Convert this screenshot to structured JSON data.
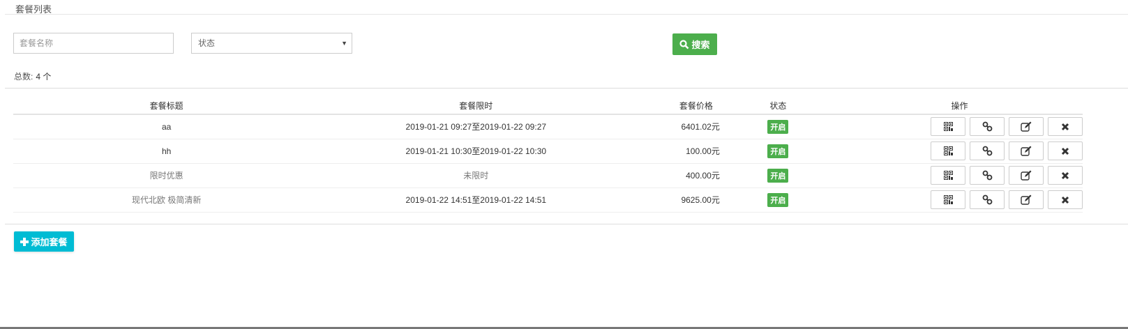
{
  "page_title": "套餐列表",
  "filters": {
    "name_placeholder": "套餐名称",
    "status_value": "状态",
    "search_label": "搜索"
  },
  "count": {
    "label": "总数:",
    "value": "4 个"
  },
  "table": {
    "headers": [
      "套餐标题",
      "套餐限时",
      "套餐价格",
      "状态",
      "操作"
    ],
    "rows": [
      {
        "title": "aa",
        "time": "2019-01-21 09:27至2019-01-22 09:27",
        "price": "6401.02元",
        "status": "开启"
      },
      {
        "title": "hh",
        "time": "2019-01-21 10:30至2019-01-22 10:30",
        "price": "100.00元",
        "status": "开启"
      },
      {
        "title": "限时优惠",
        "time": "未限时",
        "price": "400.00元",
        "status": "开启"
      },
      {
        "title": "现代北欧 极简清新",
        "time": "2019-01-22 14:51至2019-01-22 14:51",
        "price": "9625.00元",
        "status": "开启"
      }
    ]
  },
  "add_label": "添加套餐",
  "colors": {
    "success": "#4cae4c",
    "info": "#00bcd4"
  }
}
